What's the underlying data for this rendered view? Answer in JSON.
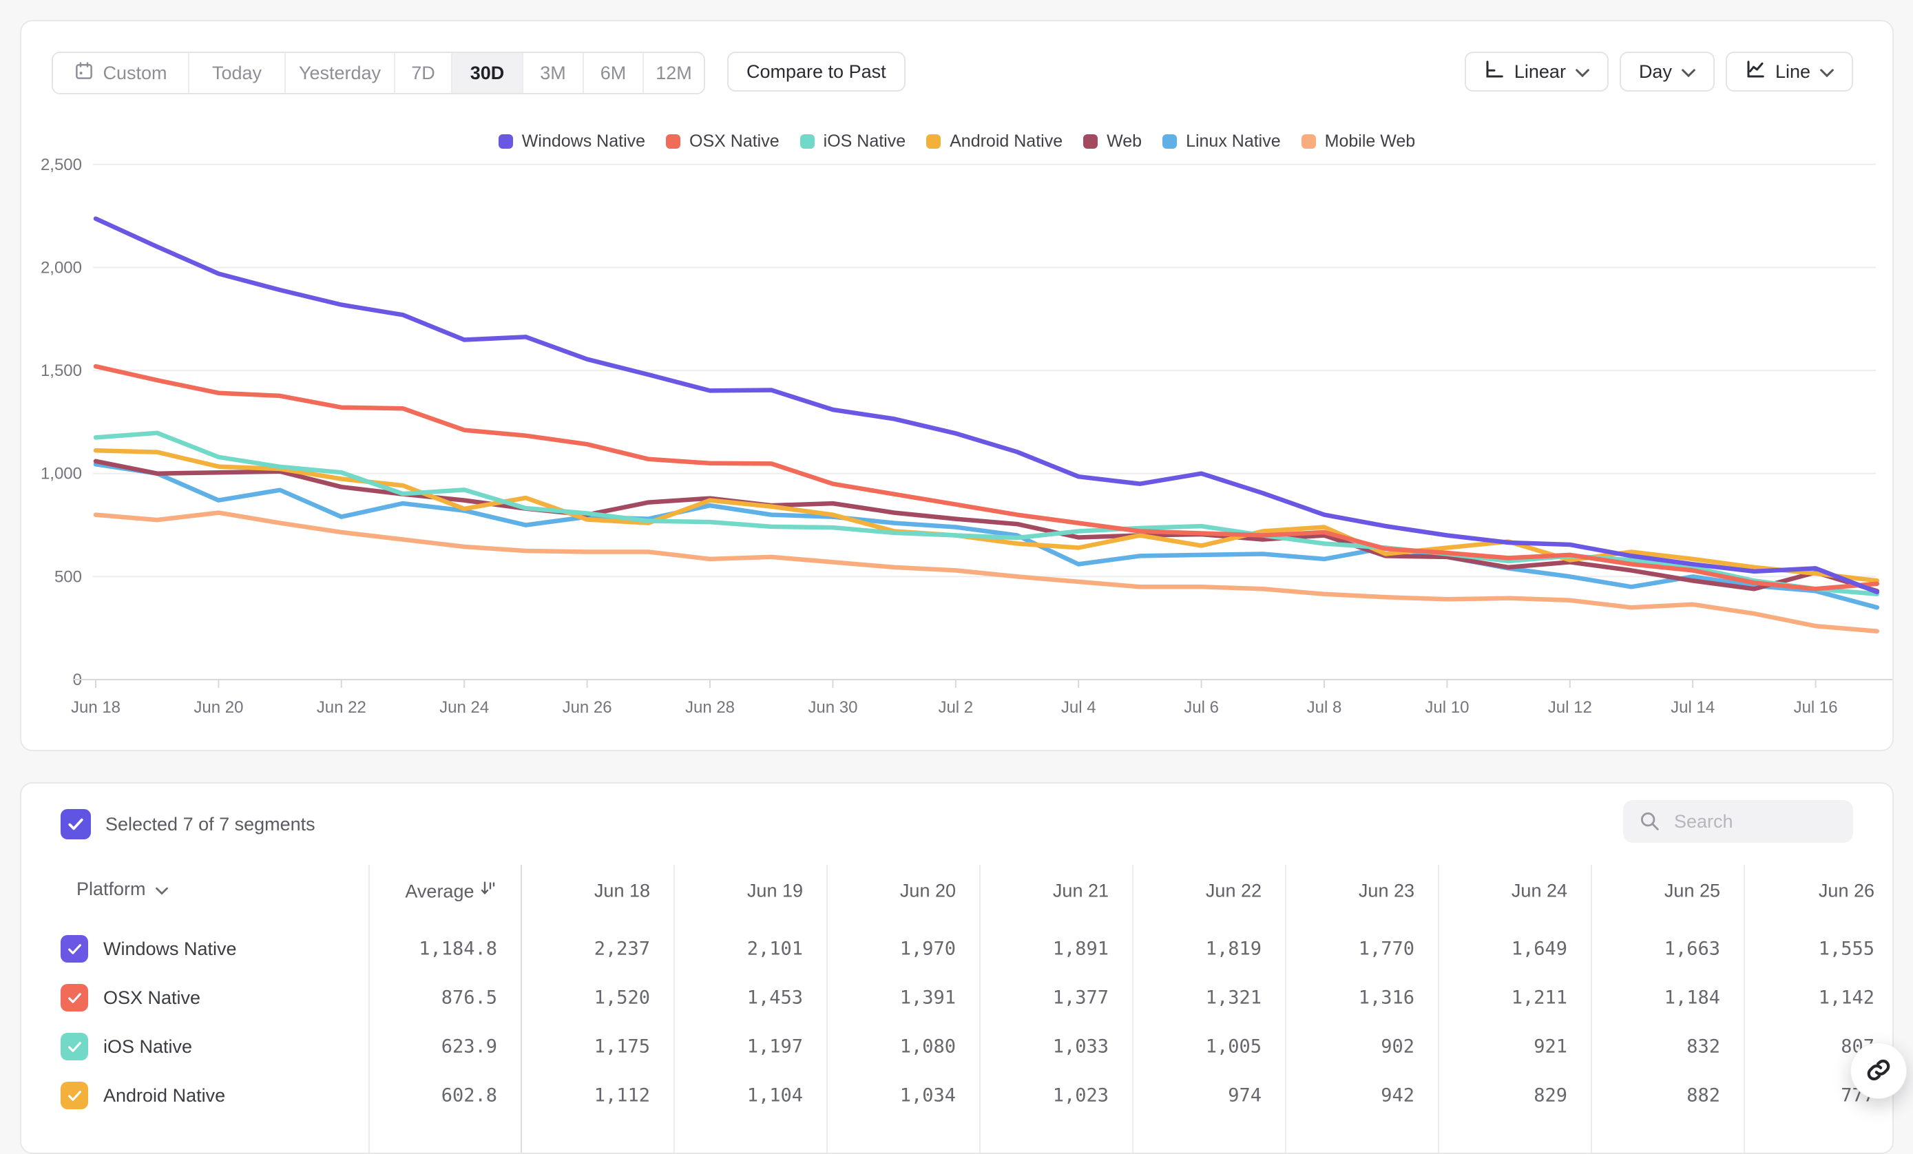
{
  "toolbar": {
    "date_ranges": [
      "Custom",
      "Today",
      "Yesterday",
      "7D",
      "30D",
      "3M",
      "6M",
      "12M"
    ],
    "selected_range": "30D",
    "compare_label": "Compare to Past",
    "scale_label": "Linear",
    "interval_label": "Day",
    "chart_type_label": "Line",
    "icons": {
      "custom": "calendar-icon",
      "scale": "linear-axis-icon",
      "chart_type": "line-chart-icon",
      "dropdown": "chevron-down-icon"
    }
  },
  "chart_data": {
    "type": "line",
    "title": "",
    "xlabel": "",
    "ylabel": "",
    "ylim": [
      0,
      2500
    ],
    "grid": "horizontal",
    "legend_position": "top",
    "y_ticks": [
      0,
      500,
      1000,
      1500,
      2000,
      2500
    ],
    "y_tick_labels": [
      "0",
      "500",
      "1,000",
      "1,500",
      "2,000",
      "2,500"
    ],
    "x": [
      "Jun 18",
      "Jun 19",
      "Jun 20",
      "Jun 21",
      "Jun 22",
      "Jun 23",
      "Jun 24",
      "Jun 25",
      "Jun 26",
      "Jun 27",
      "Jun 28",
      "Jun 29",
      "Jun 30",
      "Jul 1",
      "Jul 2",
      "Jul 3",
      "Jul 4",
      "Jul 5",
      "Jul 6",
      "Jul 7",
      "Jul 8",
      "Jul 9",
      "Jul 10",
      "Jul 11",
      "Jul 12",
      "Jul 13",
      "Jul 14",
      "Jul 15",
      "Jul 16",
      "Jul 17"
    ],
    "x_tick_labels": [
      "Jun 18",
      "Jun 20",
      "Jun 22",
      "Jun 24",
      "Jun 26",
      "Jun 28",
      "Jun 30",
      "Jul 2",
      "Jul 4",
      "Jul 6",
      "Jul 8",
      "Jul 10",
      "Jul 12",
      "Jul 14",
      "Jul 16"
    ],
    "series": [
      {
        "name": "Windows Native",
        "color": "#6A57E4",
        "values": [
          2237,
          2101,
          1970,
          1891,
          1819,
          1770,
          1649,
          1663,
          1555,
          1480,
          1402,
          1405,
          1310,
          1265,
          1195,
          1105,
          985,
          950,
          1000,
          905,
          800,
          745,
          700,
          665,
          655,
          600,
          560,
          525,
          540,
          425
        ]
      },
      {
        "name": "OSX Native",
        "color": "#F26A58",
        "values": [
          1520,
          1453,
          1391,
          1377,
          1321,
          1316,
          1211,
          1184,
          1142,
          1070,
          1050,
          1048,
          950,
          900,
          850,
          800,
          760,
          720,
          710,
          700,
          715,
          635,
          615,
          590,
          605,
          560,
          530,
          470,
          440,
          465
        ]
      },
      {
        "name": "iOS Native",
        "color": "#72D9C8",
        "values": [
          1175,
          1197,
          1080,
          1033,
          1005,
          902,
          921,
          832,
          807,
          770,
          765,
          742,
          738,
          712,
          700,
          688,
          720,
          735,
          745,
          700,
          660,
          640,
          610,
          575,
          600,
          580,
          545,
          480,
          440,
          415
        ]
      },
      {
        "name": "Android Native",
        "color": "#F3B13C",
        "values": [
          1112,
          1104,
          1034,
          1023,
          974,
          942,
          829,
          882,
          777,
          760,
          870,
          840,
          800,
          720,
          700,
          660,
          640,
          700,
          650,
          720,
          740,
          610,
          640,
          670,
          580,
          620,
          585,
          545,
          515,
          480
        ]
      },
      {
        "name": "Web",
        "color": "#A34A60",
        "values": [
          1060,
          1000,
          1005,
          1010,
          935,
          900,
          870,
          830,
          800,
          860,
          880,
          845,
          855,
          810,
          780,
          755,
          690,
          700,
          705,
          680,
          700,
          600,
          595,
          545,
          570,
          530,
          480,
          440,
          520,
          430
        ]
      },
      {
        "name": "Linux Native",
        "color": "#5FB0E7",
        "values": [
          1045,
          1000,
          870,
          920,
          790,
          855,
          820,
          750,
          790,
          780,
          845,
          800,
          790,
          760,
          740,
          700,
          560,
          600,
          605,
          610,
          585,
          640,
          595,
          540,
          500,
          450,
          500,
          455,
          430,
          350
        ]
      },
      {
        "name": "Mobile Web",
        "color": "#F9AC7D",
        "values": [
          800,
          775,
          810,
          760,
          715,
          680,
          645,
          625,
          620,
          620,
          585,
          595,
          570,
          545,
          530,
          500,
          475,
          450,
          450,
          440,
          415,
          400,
          390,
          395,
          385,
          350,
          365,
          320,
          260,
          235
        ]
      }
    ]
  },
  "segments_panel": {
    "selected_summary": "Selected 7 of 7 segments",
    "checkbox_color": "#5F55E2",
    "search_placeholder": "Search",
    "icons": {
      "search": "search-icon",
      "sort": "sort-descending-icon",
      "platform": "chevron-down-icon"
    },
    "table": {
      "platform_header": "Platform",
      "average_header": "Average",
      "date_columns": [
        "Jun 18",
        "Jun 19",
        "Jun 20",
        "Jun 21",
        "Jun 22",
        "Jun 23",
        "Jun 24",
        "Jun 25",
        "Jun 26"
      ],
      "rows": [
        {
          "platform": "Windows Native",
          "color": "#6A57E4",
          "average": "1,184.8",
          "values": [
            "2,237",
            "2,101",
            "1,970",
            "1,891",
            "1,819",
            "1,770",
            "1,649",
            "1,663",
            "1,555"
          ]
        },
        {
          "platform": "OSX Native",
          "color": "#F26A58",
          "average": "876.5",
          "values": [
            "1,520",
            "1,453",
            "1,391",
            "1,377",
            "1,321",
            "1,316",
            "1,211",
            "1,184",
            "1,142"
          ]
        },
        {
          "platform": "iOS Native",
          "color": "#72D9C8",
          "average": "623.9",
          "values": [
            "1,175",
            "1,197",
            "1,080",
            "1,033",
            "1,005",
            "902",
            "921",
            "832",
            "807"
          ]
        },
        {
          "platform": "Android Native",
          "color": "#F3B13C",
          "average": "602.8",
          "values": [
            "1,112",
            "1,104",
            "1,034",
            "1,023",
            "974",
            "942",
            "829",
            "882",
            "777"
          ]
        }
      ]
    }
  },
  "floating_button": {
    "icon": "link-icon"
  }
}
